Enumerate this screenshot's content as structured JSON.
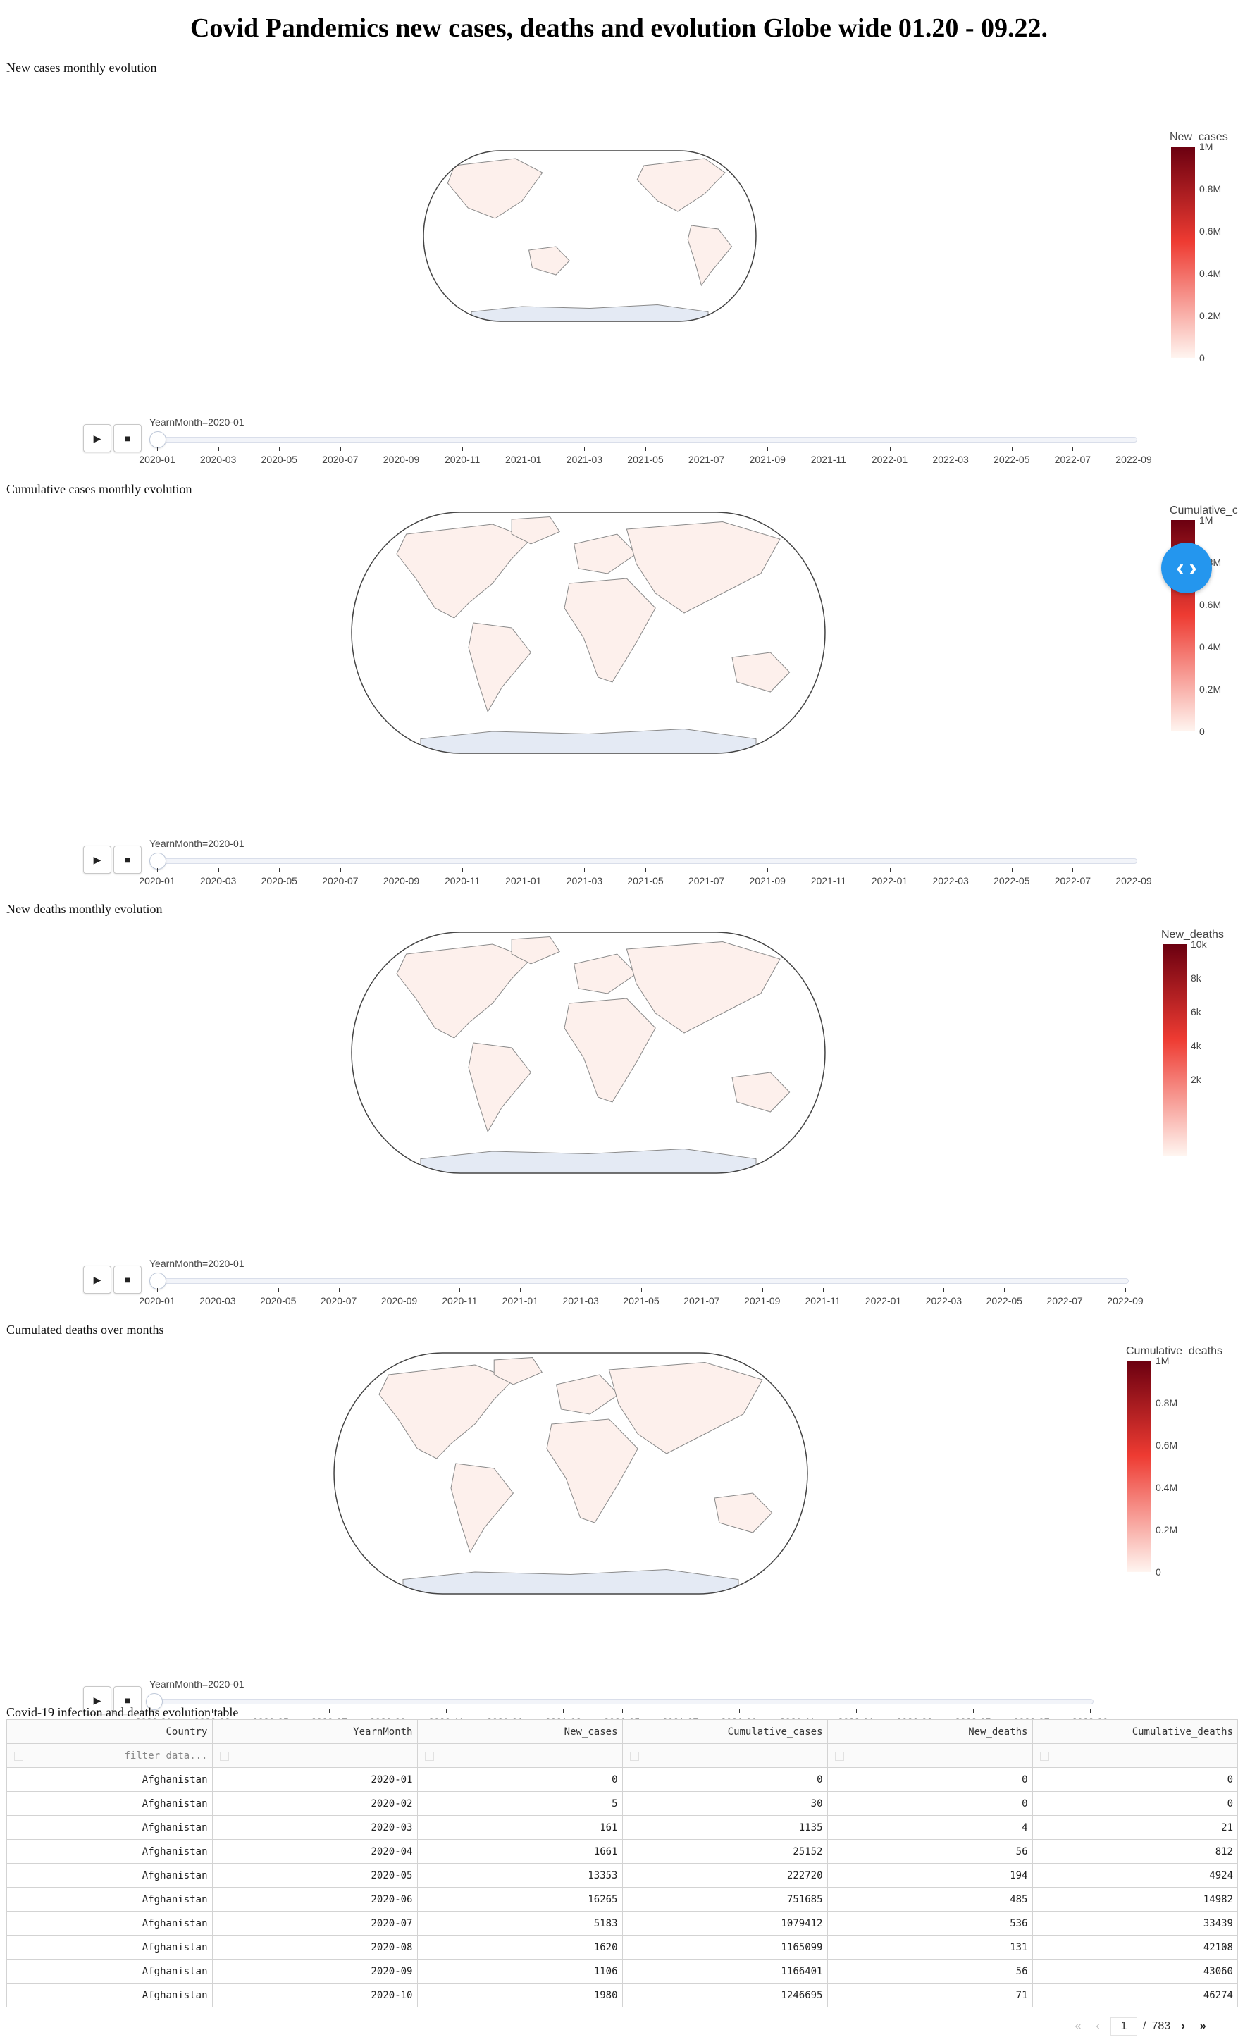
{
  "page": {
    "title": "Covid Pandemics new cases, deaths and evolution Globe wide 01.20 - 09.22."
  },
  "colors": {
    "land": "#fdf0ec",
    "land_stroke": "#8a8a8a",
    "antarctica": "#e4eaf4",
    "frame": "#444444",
    "cb_top": "#6b0010",
    "cb_mid": "#ee3b32",
    "cb_bottom": "#fff5f0",
    "fab": "#2496ee"
  },
  "panels": [
    {
      "id": "new-cases",
      "label": "New cases monthly evolution",
      "colorbar_title": "New_cases",
      "ticks": [
        "1M",
        "0.8M",
        "0.6M",
        "0.4M",
        "0.2M",
        "0"
      ],
      "slider_label": "YearnMonth=2020-01",
      "current_month": "2020-01",
      "map_view": "pacific"
    },
    {
      "id": "cumulative-cases",
      "label": "Cumulative cases monthly evolution",
      "colorbar_title": "Cumulative_cases",
      "ticks": [
        "1M",
        "0.8M",
        "0.6M",
        "0.4M",
        "0.2M",
        "0"
      ],
      "slider_label": "YearnMonth=2020-01",
      "current_month": "2020-01",
      "map_view": "atlantic"
    },
    {
      "id": "new-deaths",
      "label": "New deaths monthly evolution",
      "colorbar_title": "New_deaths",
      "ticks": [
        "10k",
        "8k",
        "6k",
        "4k",
        "2k"
      ],
      "slider_label": "YearnMonth=2020-01",
      "current_month": "2020-01",
      "map_view": "atlantic"
    },
    {
      "id": "cumulative-deaths",
      "label": "Cumulated deaths over months",
      "colorbar_title": "Cumulative_deaths",
      "ticks": [
        "1M",
        "0.8M",
        "0.6M",
        "0.4M",
        "0.2M",
        "0"
      ],
      "slider_label": "YearnMonth=2020-01",
      "current_month": "2020-01",
      "map_view": "atlantic"
    }
  ],
  "slider_ticks": [
    "2020-01",
    "2020-03",
    "2020-05",
    "2020-07",
    "2020-09",
    "2020-11",
    "2021-01",
    "2021-03",
    "2021-05",
    "2021-07",
    "2021-09",
    "2021-11",
    "2022-01",
    "2022-03",
    "2022-05",
    "2022-07",
    "2022-09"
  ],
  "buttons": {
    "play_icon": "play-icon",
    "stop_icon": "stop-icon"
  },
  "table": {
    "label": "Covid-19 infection and deaths evolution table",
    "columns": [
      "Country",
      "YearnMonth",
      "New_cases",
      "Cumulative_cases",
      "New_deaths",
      "Cumulative_deaths"
    ],
    "filter_placeholder": "filter data...",
    "rows": [
      [
        "Afghanistan",
        "2020-01",
        "0",
        "0",
        "0",
        "0"
      ],
      [
        "Afghanistan",
        "2020-02",
        "5",
        "30",
        "0",
        "0"
      ],
      [
        "Afghanistan",
        "2020-03",
        "161",
        "1135",
        "4",
        "21"
      ],
      [
        "Afghanistan",
        "2020-04",
        "1661",
        "25152",
        "56",
        "812"
      ],
      [
        "Afghanistan",
        "2020-05",
        "13353",
        "222720",
        "194",
        "4924"
      ],
      [
        "Afghanistan",
        "2020-06",
        "16265",
        "751685",
        "485",
        "14982"
      ],
      [
        "Afghanistan",
        "2020-07",
        "5183",
        "1079412",
        "536",
        "33439"
      ],
      [
        "Afghanistan",
        "2020-08",
        "1620",
        "1165099",
        "131",
        "42108"
      ],
      [
        "Afghanistan",
        "2020-09",
        "1106",
        "1166401",
        "56",
        "43060"
      ],
      [
        "Afghanistan",
        "2020-10",
        "1980",
        "1246695",
        "71",
        "46274"
      ]
    ]
  },
  "pagination": {
    "current": "1",
    "separator": "/",
    "total": "783"
  }
}
